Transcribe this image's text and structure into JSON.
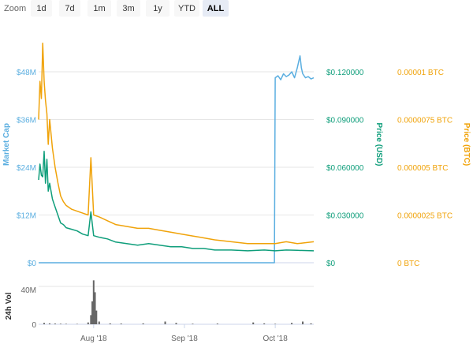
{
  "zoom": {
    "label": "Zoom",
    "buttons": [
      "1d",
      "7d",
      "1m",
      "3m",
      "1y",
      "YTD",
      "ALL"
    ],
    "selected": "ALL"
  },
  "colors": {
    "market_cap": "#5aaee0",
    "price_usd": "#0f9e7b",
    "price_btc": "#f0a30a",
    "volume": "#666666",
    "grid": "#e6e6e6"
  },
  "chart_data": [
    {
      "type": "line",
      "x_labels": [
        "Aug '18",
        "Sep '18",
        "Oct '18"
      ],
      "axes": {
        "market_cap": {
          "label": "Market Cap",
          "ticks": [
            "$0",
            "$12M",
            "$24M",
            "$36M",
            "$48M"
          ],
          "range": [
            0,
            48000000
          ]
        },
        "price_usd": {
          "label": "Price (USD)",
          "ticks": [
            "$0",
            "$0.030000",
            "$0.060000",
            "$0.090000",
            "$0.120000"
          ],
          "range": [
            0,
            0.12
          ]
        },
        "price_btc": {
          "label": "Price (BTC)",
          "ticks": [
            "0 BTC",
            "0.0000025 BTC",
            "0.000005 BTC",
            "0.0000075 BTC",
            "0.00001 BTC"
          ],
          "range": [
            0,
            1e-05
          ]
        }
      },
      "grid": true,
      "series": [
        {
          "name": "Market Cap",
          "axis": "market_cap",
          "points": [
            [
              0.0,
              0
            ],
            [
              0.854,
              0
            ],
            [
              0.857,
              0
            ],
            [
              0.86,
              46500000
            ],
            [
              0.87,
              47000000
            ],
            [
              0.88,
              46000000
            ],
            [
              0.89,
              47500000
            ],
            [
              0.9,
              46800000
            ],
            [
              0.91,
              47200000
            ],
            [
              0.92,
              48000000
            ],
            [
              0.93,
              46500000
            ],
            [
              0.94,
              49000000
            ],
            [
              0.945,
              50500000
            ],
            [
              0.95,
              52000000
            ],
            [
              0.955,
              49000000
            ],
            [
              0.96,
              47500000
            ],
            [
              0.97,
              46500000
            ],
            [
              0.98,
              46800000
            ],
            [
              0.99,
              46200000
            ],
            [
              1.0,
              46500000
            ]
          ]
        },
        {
          "name": "Price (USD)",
          "axis": "price_usd",
          "points": [
            [
              0.0,
              0.052
            ],
            [
              0.005,
              0.062
            ],
            [
              0.01,
              0.055
            ],
            [
              0.015,
              0.054
            ],
            [
              0.02,
              0.07
            ],
            [
              0.025,
              0.05
            ],
            [
              0.03,
              0.065
            ],
            [
              0.035,
              0.045
            ],
            [
              0.04,
              0.05
            ],
            [
              0.05,
              0.04
            ],
            [
              0.06,
              0.035
            ],
            [
              0.07,
              0.03
            ],
            [
              0.08,
              0.025
            ],
            [
              0.09,
              0.024
            ],
            [
              0.1,
              0.022
            ],
            [
              0.12,
              0.021
            ],
            [
              0.14,
              0.02
            ],
            [
              0.16,
              0.018
            ],
            [
              0.18,
              0.017
            ],
            [
              0.19,
              0.032
            ],
            [
              0.2,
              0.017
            ],
            [
              0.22,
              0.016
            ],
            [
              0.25,
              0.015
            ],
            [
              0.28,
              0.013
            ],
            [
              0.32,
              0.012
            ],
            [
              0.36,
              0.011
            ],
            [
              0.4,
              0.012
            ],
            [
              0.44,
              0.011
            ],
            [
              0.48,
              0.01
            ],
            [
              0.52,
              0.01
            ],
            [
              0.56,
              0.009
            ],
            [
              0.6,
              0.009
            ],
            [
              0.64,
              0.008
            ],
            [
              0.7,
              0.008
            ],
            [
              0.76,
              0.0075
            ],
            [
              0.82,
              0.008
            ],
            [
              0.86,
              0.0075
            ],
            [
              0.9,
              0.008
            ],
            [
              0.94,
              0.0078
            ],
            [
              1.0,
              0.0075
            ]
          ]
        },
        {
          "name": "Price (BTC)",
          "axis": "price_btc",
          "points": [
            [
              0.0,
              7.5e-06
            ],
            [
              0.005,
              9.5e-06
            ],
            [
              0.01,
              8.6e-06
            ],
            [
              0.015,
              1.15e-05
            ],
            [
              0.02,
              9.5e-06
            ],
            [
              0.025,
              8.5e-06
            ],
            [
              0.03,
              7.8e-06
            ],
            [
              0.035,
              6.2e-06
            ],
            [
              0.04,
              7.5e-06
            ],
            [
              0.05,
              6e-06
            ],
            [
              0.06,
              5e-06
            ],
            [
              0.07,
              4.2e-06
            ],
            [
              0.08,
              3.5e-06
            ],
            [
              0.09,
              3.2e-06
            ],
            [
              0.1,
              3e-06
            ],
            [
              0.12,
              2.8e-06
            ],
            [
              0.14,
              2.7e-06
            ],
            [
              0.16,
              2.6e-06
            ],
            [
              0.18,
              2.5e-06
            ],
            [
              0.19,
              5.5e-06
            ],
            [
              0.2,
              2.5e-06
            ],
            [
              0.22,
              2.4e-06
            ],
            [
              0.25,
              2.2e-06
            ],
            [
              0.28,
              2e-06
            ],
            [
              0.32,
              1.9e-06
            ],
            [
              0.36,
              1.8e-06
            ],
            [
              0.4,
              1.8e-06
            ],
            [
              0.44,
              1.7e-06
            ],
            [
              0.48,
              1.6e-06
            ],
            [
              0.52,
              1.5e-06
            ],
            [
              0.56,
              1.4e-06
            ],
            [
              0.6,
              1.3e-06
            ],
            [
              0.64,
              1.2e-06
            ],
            [
              0.7,
              1.1e-06
            ],
            [
              0.76,
              1e-06
            ],
            [
              0.82,
              1e-06
            ],
            [
              0.86,
              1e-06
            ],
            [
              0.9,
              1.1e-06
            ],
            [
              0.94,
              1e-06
            ],
            [
              1.0,
              1.1e-06
            ]
          ]
        }
      ]
    },
    {
      "type": "bar",
      "axes": {
        "volume": {
          "label": "24h Vol",
          "ticks": [
            "0",
            "40M"
          ],
          "range": [
            0,
            40000000
          ]
        }
      },
      "series": [
        {
          "name": "24h Vol",
          "points": [
            [
              0.02,
              1500000
            ],
            [
              0.04,
              1000000
            ],
            [
              0.06,
              800000
            ],
            [
              0.08,
              600000
            ],
            [
              0.1,
              500000
            ],
            [
              0.14,
              400000
            ],
            [
              0.18,
              2000000
            ],
            [
              0.19,
              10000000
            ],
            [
              0.195,
              25000000
            ],
            [
              0.2,
              48000000
            ],
            [
              0.205,
              35000000
            ],
            [
              0.21,
              15000000
            ],
            [
              0.22,
              3000000
            ],
            [
              0.26,
              1000000
            ],
            [
              0.3,
              800000
            ],
            [
              0.38,
              1000000
            ],
            [
              0.46,
              3000000
            ],
            [
              0.5,
              1500000
            ],
            [
              0.56,
              600000
            ],
            [
              0.65,
              800000
            ],
            [
              0.78,
              2000000
            ],
            [
              0.82,
              1000000
            ],
            [
              0.86,
              500000
            ],
            [
              0.92,
              1500000
            ],
            [
              0.96,
              3000000
            ],
            [
              0.99,
              1000000
            ]
          ]
        }
      ]
    }
  ]
}
